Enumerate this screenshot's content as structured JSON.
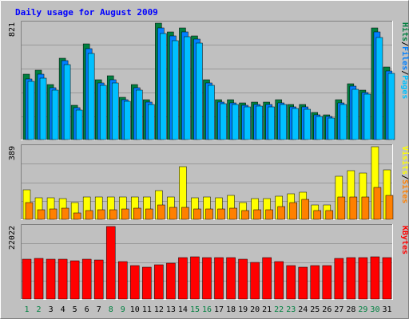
{
  "chart_data": {
    "type": "bar",
    "title": "Daily usage for August 2009",
    "categories": [
      "1",
      "2",
      "3",
      "4",
      "5",
      "6",
      "7",
      "8",
      "9",
      "10",
      "11",
      "12",
      "13",
      "14",
      "15",
      "16",
      "17",
      "18",
      "19",
      "20",
      "21",
      "22",
      "23",
      "24",
      "25",
      "26",
      "27",
      "28",
      "29",
      "30",
      "31"
    ],
    "weekend_days": [
      "1",
      "2",
      "8",
      "9",
      "15",
      "16",
      "22",
      "23",
      "29",
      "30"
    ],
    "colors": {
      "background": "#C0C0C0",
      "title": "#0000FF",
      "hits": "#008040",
      "files": "#0080FF",
      "pages": "#00C0FF",
      "visits": "#FFFF00",
      "sites": "#FF8000",
      "kbytes": "#FF0000",
      "weekend_label": "#008040",
      "weekday_label": "#000000"
    },
    "panels": [
      {
        "name": "top",
        "ymax_label": "821",
        "ymax": 821,
        "legend": [
          "Pages",
          "/",
          "Files",
          "/",
          "Hits"
        ],
        "series": [
          {
            "name": "Hits",
            "values": [
              460,
              490,
              390,
              575,
              240,
              675,
              420,
              450,
              300,
              390,
              280,
              821,
              760,
              785,
              730,
              420,
              280,
              280,
              260,
              265,
              265,
              280,
              250,
              245,
              190,
              175,
              280,
              395,
              350,
              785,
              510
            ]
          },
          {
            "name": "Files",
            "values": [
              430,
              460,
              365,
              555,
              225,
              640,
              400,
              420,
              280,
              365,
              265,
              790,
              730,
              760,
              710,
              400,
              265,
              260,
              240,
              250,
              245,
              260,
              230,
              230,
              175,
              165,
              260,
              375,
              330,
              760,
              485
            ]
          },
          {
            "name": "Pages",
            "values": [
              410,
              435,
              350,
              530,
              210,
              610,
              380,
              400,
              270,
              350,
              250,
              750,
              700,
              725,
              680,
              380,
              255,
              250,
              230,
              235,
              230,
              245,
              220,
              215,
              165,
              150,
              245,
              355,
              320,
              720,
              465
            ]
          }
        ]
      },
      {
        "name": "middle",
        "ymax_label": "389",
        "ymax": 389,
        "legend": [
          "Sites",
          "/",
          "Visits"
        ],
        "series": [
          {
            "name": "Visits",
            "values": [
              160,
              115,
              115,
              110,
              90,
              120,
              120,
              120,
              120,
              120,
              120,
              155,
              120,
              280,
              115,
              120,
              115,
              130,
              90,
              110,
              110,
              125,
              135,
              145,
              75,
              75,
              230,
              260,
              250,
              389,
              265
            ]
          },
          {
            "name": "Sites",
            "values": [
              90,
              50,
              55,
              60,
              35,
              45,
              50,
              50,
              55,
              60,
              55,
              75,
              65,
              65,
              55,
              55,
              55,
              60,
              45,
              50,
              50,
              70,
              90,
              105,
              45,
              45,
              120,
              120,
              120,
              170,
              130
            ]
          }
        ]
      },
      {
        "name": "bottom",
        "ymax_label": "22022",
        "ymax": 22022,
        "legend": [
          "KBytes"
        ],
        "series": [
          {
            "name": "KBytes",
            "values": [
              12100,
              12300,
              12100,
              12000,
              11600,
              12000,
              11800,
              22022,
              11400,
              10200,
              9800,
              10400,
              11000,
              12700,
              12900,
              12600,
              12600,
              12600,
              12200,
              11200,
              12600,
              11400,
              10200,
              9800,
              10200,
              10200,
              12300,
              12500,
              12500,
              12900,
              12700
            ]
          }
        ]
      }
    ]
  }
}
